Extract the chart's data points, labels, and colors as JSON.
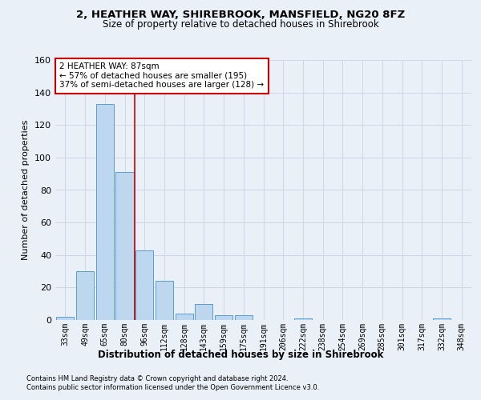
{
  "title_line1": "2, HEATHER WAY, SHIREBROOK, MANSFIELD, NG20 8FZ",
  "title_line2": "Size of property relative to detached houses in Shirebrook",
  "xlabel": "Distribution of detached houses by size in Shirebrook",
  "ylabel": "Number of detached properties",
  "categories": [
    "33sqm",
    "49sqm",
    "65sqm",
    "80sqm",
    "96sqm",
    "112sqm",
    "128sqm",
    "143sqm",
    "159sqm",
    "175sqm",
    "191sqm",
    "206sqm",
    "222sqm",
    "238sqm",
    "254sqm",
    "269sqm",
    "285sqm",
    "301sqm",
    "317sqm",
    "332sqm",
    "348sqm"
  ],
  "bar_values": [
    2,
    30,
    133,
    91,
    43,
    24,
    4,
    10,
    3,
    3,
    0,
    0,
    1,
    0,
    0,
    0,
    0,
    0,
    0,
    1,
    0
  ],
  "bar_color": "#bdd7ee",
  "bar_edge_color": "#5b9bd5",
  "vline_x": 3.5,
  "annotation_text": "2 HEATHER WAY: 87sqm\n← 57% of detached houses are smaller (195)\n37% of semi-detached houses are larger (128) →",
  "annotation_box_color": "#ffffff",
  "annotation_box_edge": "#cc0000",
  "vline_color": "#cc0000",
  "ylim": [
    0,
    160
  ],
  "yticks": [
    0,
    20,
    40,
    60,
    80,
    100,
    120,
    140,
    160
  ],
  "grid_color": "#d0d8e8",
  "footer_line1": "Contains HM Land Registry data © Crown copyright and database right 2024.",
  "footer_line2": "Contains public sector information licensed under the Open Government Licence v3.0.",
  "bg_color": "#eaf0f8",
  "plot_bg_color": "#eaf0f8",
  "title1_fontsize": 9.5,
  "title2_fontsize": 8.5,
  "ylabel_fontsize": 8,
  "xlabel_fontsize": 8.5,
  "ytick_fontsize": 8,
  "xtick_fontsize": 7,
  "annot_fontsize": 7.5,
  "footer_fontsize": 6
}
